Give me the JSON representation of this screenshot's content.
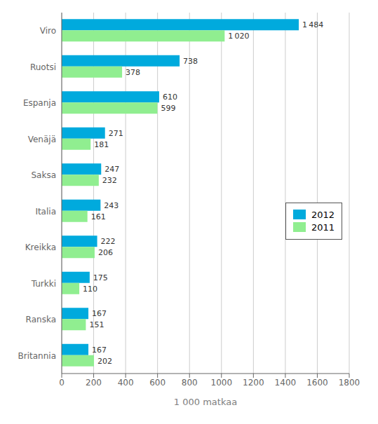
{
  "chart_data": {
    "type": "bar",
    "orientation": "horizontal",
    "categories": [
      "Viro",
      "Ruotsi",
      "Espanja",
      "Venäjä",
      "Saksa",
      "Italia",
      "Kreikka",
      "Turkki",
      "Ranska",
      "Britannia"
    ],
    "series": [
      {
        "name": "2012",
        "color": "#00AADD",
        "values": [
          1484,
          738,
          610,
          271,
          247,
          243,
          222,
          175,
          167,
          167
        ],
        "value_labels": [
          "1 484",
          "738",
          "610",
          "271",
          "247",
          "243",
          "222",
          "175",
          "167",
          "167"
        ]
      },
      {
        "name": "2011",
        "color": "#90EE90",
        "values": [
          1020,
          378,
          599,
          181,
          232,
          161,
          206,
          110,
          151,
          202
        ],
        "value_labels": [
          "1 020",
          "378",
          "599",
          "181",
          "232",
          "161",
          "206",
          "110",
          "151",
          "202"
        ]
      }
    ],
    "xlabel": "1 000 matkaa",
    "xlim": [
      0,
      1800
    ],
    "xticks": [
      0,
      200,
      400,
      600,
      800,
      1000,
      1200,
      1400,
      1600,
      1800
    ],
    "grid": true,
    "legend": "right",
    "data_labels": true
  }
}
